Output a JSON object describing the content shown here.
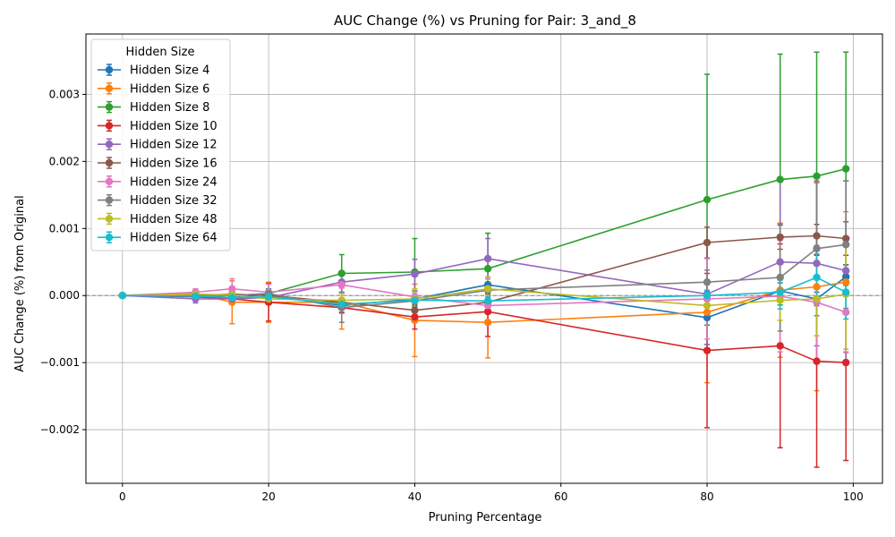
{
  "chart_data": {
    "type": "line",
    "title": "AUC Change (%) vs Pruning for Pair: 3_and_8",
    "xlabel": "Pruning Percentage",
    "ylabel": "AUC Change (%) from Original",
    "xlim": [
      -5,
      104
    ],
    "ylim": [
      -0.0028,
      0.0039
    ],
    "xticks": [
      0,
      20,
      40,
      60,
      80,
      100
    ],
    "xtick_labels": [
      "0",
      "20",
      "40",
      "60",
      "80",
      "100"
    ],
    "yticks": [
      -0.002,
      -0.001,
      0.0,
      0.001,
      0.002,
      0.003
    ],
    "ytick_labels": [
      "−0.002",
      "−0.001",
      "0.000",
      "0.001",
      "0.002",
      "0.003"
    ],
    "grid": true,
    "reference_line_y": 0,
    "legend_title": "Hidden Size",
    "legend_position": "upper-left",
    "series": [
      {
        "name": "Hidden Size 4",
        "color": "#1f77b4",
        "points": [
          {
            "x": 0,
            "y": 0,
            "e": 0
          },
          {
            "x": 10,
            "y": 0.0,
            "e": 8e-05
          },
          {
            "x": 15,
            "y": -3e-05,
            "e": 6e-05
          },
          {
            "x": 20,
            "y": 2e-05,
            "e": 8e-05
          },
          {
            "x": 30,
            "y": -0.00015,
            "e": 0.0001
          },
          {
            "x": 40,
            "y": -5e-05,
            "e": 0.00012
          },
          {
            "x": 50,
            "y": 0.00016,
            "e": 0.00012
          },
          {
            "x": 80,
            "y": -0.00033,
            "e": 0.0004
          },
          {
            "x": 90,
            "y": 7e-05,
            "e": 0.00012
          },
          {
            "x": 95,
            "y": -5e-05,
            "e": 0.0001
          },
          {
            "x": 99,
            "y": 0.00028,
            "e": 8e-05
          }
        ]
      },
      {
        "name": "Hidden Size 6",
        "color": "#ff7f0e",
        "points": [
          {
            "x": 0,
            "y": 0,
            "e": 0
          },
          {
            "x": 10,
            "y": 3e-05,
            "e": 7e-05
          },
          {
            "x": 15,
            "y": -0.0001,
            "e": 0.00032
          },
          {
            "x": 20,
            "y": -0.0001,
            "e": 0.0003
          },
          {
            "x": 30,
            "y": -0.0001,
            "e": 0.0004
          },
          {
            "x": 40,
            "y": -0.00037,
            "e": 0.00054
          },
          {
            "x": 50,
            "y": -0.0004,
            "e": 0.00053
          },
          {
            "x": 80,
            "y": -0.00025,
            "e": 0.00105
          },
          {
            "x": 90,
            "y": 8e-05,
            "e": 0.001
          },
          {
            "x": 95,
            "y": 0.00013,
            "e": 0.00155
          },
          {
            "x": 99,
            "y": 0.0002,
            "e": 0.00105
          }
        ]
      },
      {
        "name": "Hidden Size 8",
        "color": "#2ca02c",
        "points": [
          {
            "x": 0,
            "y": 0,
            "e": 0
          },
          {
            "x": 10,
            "y": 0.0,
            "e": 4e-05
          },
          {
            "x": 15,
            "y": 0.0,
            "e": 4e-05
          },
          {
            "x": 20,
            "y": 3e-05,
            "e": 6e-05
          },
          {
            "x": 30,
            "y": 0.00033,
            "e": 0.00028
          },
          {
            "x": 40,
            "y": 0.00035,
            "e": 0.0005
          },
          {
            "x": 50,
            "y": 0.0004,
            "e": 0.00053
          },
          {
            "x": 80,
            "y": 0.00143,
            "e": 0.00187
          },
          {
            "x": 90,
            "y": 0.00173,
            "e": 0.00187
          },
          {
            "x": 95,
            "y": 0.00178,
            "e": 0.00185
          },
          {
            "x": 99,
            "y": 0.00189,
            "e": 0.00174
          }
        ]
      },
      {
        "name": "Hidden Size 10",
        "color": "#d62728",
        "points": [
          {
            "x": 0,
            "y": 0,
            "e": 0
          },
          {
            "x": 10,
            "y": -2e-05,
            "e": 5e-05
          },
          {
            "x": 15,
            "y": -5e-05,
            "e": 6e-05
          },
          {
            "x": 20,
            "y": -0.0001,
            "e": 0.00028
          },
          {
            "x": 30,
            "y": -0.00018,
            "e": 8e-05
          },
          {
            "x": 40,
            "y": -0.00032,
            "e": 0.00018
          },
          {
            "x": 50,
            "y": -0.00024,
            "e": 0.00037
          },
          {
            "x": 80,
            "y": -0.00082,
            "e": 0.00115
          },
          {
            "x": 90,
            "y": -0.00075,
            "e": 0.00152
          },
          {
            "x": 95,
            "y": -0.00098,
            "e": 0.00158
          },
          {
            "x": 99,
            "y": -0.001,
            "e": 0.00146
          }
        ]
      },
      {
        "name": "Hidden Size 12",
        "color": "#9467bd",
        "points": [
          {
            "x": 0,
            "y": 0,
            "e": 0
          },
          {
            "x": 10,
            "y": -5e-05,
            "e": 6e-05
          },
          {
            "x": 15,
            "y": -5e-05,
            "e": 6e-05
          },
          {
            "x": 20,
            "y": -3e-05,
            "e": 8e-05
          },
          {
            "x": 30,
            "y": 0.0002,
            "e": 0.00015
          },
          {
            "x": 40,
            "y": 0.00032,
            "e": 0.00022
          },
          {
            "x": 50,
            "y": 0.00055,
            "e": 0.0003
          },
          {
            "x": 80,
            "y": 2e-05,
            "e": 0.00075
          },
          {
            "x": 90,
            "y": 0.0005,
            "e": 0.00123
          },
          {
            "x": 95,
            "y": 0.00048,
            "e": 0.00123
          },
          {
            "x": 99,
            "y": 0.00037,
            "e": 0.00134
          }
        ]
      },
      {
        "name": "Hidden Size 16",
        "color": "#8c564b",
        "points": [
          {
            "x": 0,
            "y": 0,
            "e": 0
          },
          {
            "x": 10,
            "y": 0.0,
            "e": 4e-05
          },
          {
            "x": 15,
            "y": 2e-05,
            "e": 4e-05
          },
          {
            "x": 20,
            "y": 0.0,
            "e": 6e-05
          },
          {
            "x": 30,
            "y": -0.0001,
            "e": 6e-05
          },
          {
            "x": 40,
            "y": -0.00022,
            "e": 8e-05
          },
          {
            "x": 50,
            "y": -0.0001,
            "e": 0.00012
          },
          {
            "x": 80,
            "y": 0.00079,
            "e": 0.00023
          },
          {
            "x": 90,
            "y": 0.00087,
            "e": 0.00018
          },
          {
            "x": 95,
            "y": 0.00089,
            "e": 0.00017
          },
          {
            "x": 99,
            "y": 0.00085,
            "e": 0.00025
          }
        ]
      },
      {
        "name": "Hidden Size 24",
        "color": "#e377c2",
        "points": [
          {
            "x": 0,
            "y": 0,
            "e": 0
          },
          {
            "x": 10,
            "y": 5e-05,
            "e": 5e-05
          },
          {
            "x": 15,
            "y": 0.0001,
            "e": 0.00015
          },
          {
            "x": 20,
            "y": 5e-05,
            "e": 0.00012
          },
          {
            "x": 30,
            "y": 0.00016,
            "e": 5e-05
          },
          {
            "x": 40,
            "y": -2e-05,
            "e": 6e-05
          },
          {
            "x": 50,
            "y": -0.00015,
            "e": 8e-05
          },
          {
            "x": 80,
            "y": -5e-05,
            "e": 0.0006
          },
          {
            "x": 90,
            "y": -1e-05,
            "e": 0.00083
          },
          {
            "x": 95,
            "y": -0.0001,
            "e": 0.00085
          },
          {
            "x": 99,
            "y": -0.00025,
            "e": 0.00059
          }
        ]
      },
      {
        "name": "Hidden Size 32",
        "color": "#7f7f7f",
        "points": [
          {
            "x": 0,
            "y": 0,
            "e": 0
          },
          {
            "x": 10,
            "y": 0.0,
            "e": 3e-05
          },
          {
            "x": 15,
            "y": 0.0,
            "e": 3e-05
          },
          {
            "x": 20,
            "y": 3e-05,
            "e": 5e-05
          },
          {
            "x": 30,
            "y": -0.00018,
            "e": 0.00022
          },
          {
            "x": 40,
            "y": -8e-05,
            "e": 0.00015
          },
          {
            "x": 50,
            "y": 8e-05,
            "e": 0.00012
          },
          {
            "x": 80,
            "y": 0.0002,
            "e": 0.00018
          },
          {
            "x": 90,
            "y": 0.00027,
            "e": 0.0008
          },
          {
            "x": 95,
            "y": 0.0007,
            "e": 0.001
          },
          {
            "x": 99,
            "y": 0.00076,
            "e": 0.00095
          }
        ]
      },
      {
        "name": "Hidden Size 48",
        "color": "#bcbd22",
        "points": [
          {
            "x": 0,
            "y": 0,
            "e": 0
          },
          {
            "x": 10,
            "y": 2e-05,
            "e": 3e-05
          },
          {
            "x": 15,
            "y": 1e-05,
            "e": 3e-05
          },
          {
            "x": 20,
            "y": -5e-05,
            "e": 5e-05
          },
          {
            "x": 30,
            "y": -7e-05,
            "e": 0.0001
          },
          {
            "x": 40,
            "y": -5e-05,
            "e": 0.00015
          },
          {
            "x": 50,
            "y": 0.0001,
            "e": 0.00018
          },
          {
            "x": 80,
            "y": -0.00015,
            "e": 0.00015
          },
          {
            "x": 90,
            "y": -7e-05,
            "e": 0.0003
          },
          {
            "x": 95,
            "y": -5e-05,
            "e": 0.00055
          },
          {
            "x": 99,
            "y": 2e-05,
            "e": 0.00082
          }
        ]
      },
      {
        "name": "Hidden Size 64",
        "color": "#17becf",
        "points": [
          {
            "x": 0,
            "y": 0,
            "e": 0
          },
          {
            "x": 10,
            "y": -1e-05,
            "e": 3e-05
          },
          {
            "x": 15,
            "y": -3e-05,
            "e": 3e-05
          },
          {
            "x": 20,
            "y": -2e-05,
            "e": 3e-05
          },
          {
            "x": 30,
            "y": -0.00013,
            "e": 5e-05
          },
          {
            "x": 40,
            "y": -7e-05,
            "e": 5e-05
          },
          {
            "x": 50,
            "y": -8e-05,
            "e": 6e-05
          },
          {
            "x": 80,
            "y": 0.0,
            "e": 8e-05
          },
          {
            "x": 90,
            "y": 5e-05,
            "e": 0.00025
          },
          {
            "x": 95,
            "y": 0.00027,
            "e": 0.00035
          },
          {
            "x": 99,
            "y": 5e-05,
            "e": 0.0004
          }
        ]
      }
    ]
  }
}
